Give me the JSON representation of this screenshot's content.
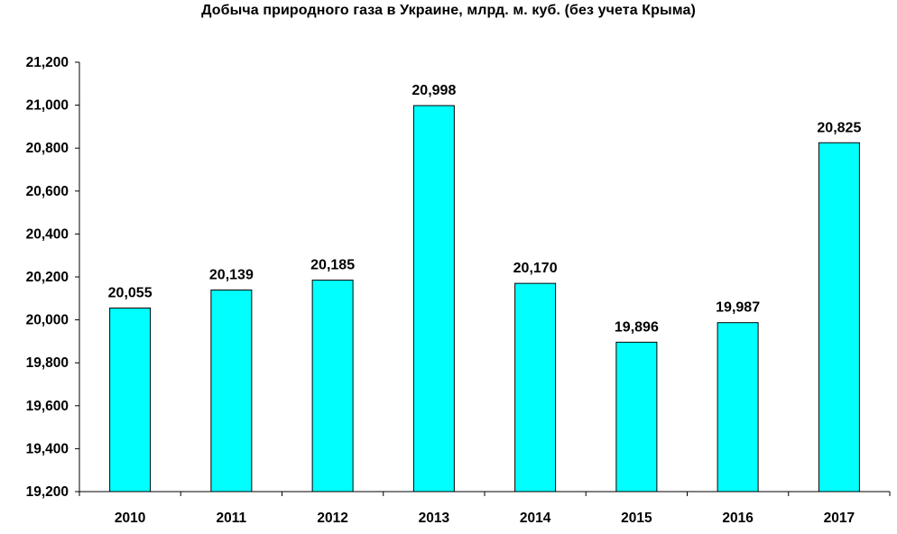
{
  "title": "Добыча природного газа в Украине, млрд. м. куб. (без учета Крыма)",
  "chart_data": {
    "type": "bar",
    "title": "Добыча природного газа в Украине, млрд. м. куб. (без учета Крыма)",
    "xlabel": "",
    "ylabel": "",
    "categories": [
      "2010",
      "2011",
      "2012",
      "2013",
      "2014",
      "2015",
      "2016",
      "2017"
    ],
    "values": [
      20.055,
      20.139,
      20.185,
      20.998,
      20.17,
      19.896,
      19.987,
      20.825
    ],
    "value_labels": [
      "20,055",
      "20,139",
      "20,185",
      "20,998",
      "20,170",
      "19,896",
      "19,987",
      "20,825"
    ],
    "ylim": [
      19.2,
      21.2
    ],
    "yticks": [
      19.2,
      19.4,
      19.6,
      19.8,
      20.0,
      20.2,
      20.4,
      20.6,
      20.8,
      21.0,
      21.2
    ],
    "ytick_labels": [
      "19,200",
      "19,400",
      "19,600",
      "19,800",
      "20,000",
      "20,200",
      "20,400",
      "20,600",
      "20,800",
      "21,000",
      "21,200"
    ],
    "grid": false,
    "legend": "none",
    "bar_color": "#00FFFF",
    "bar_edge_color": "#000000"
  }
}
